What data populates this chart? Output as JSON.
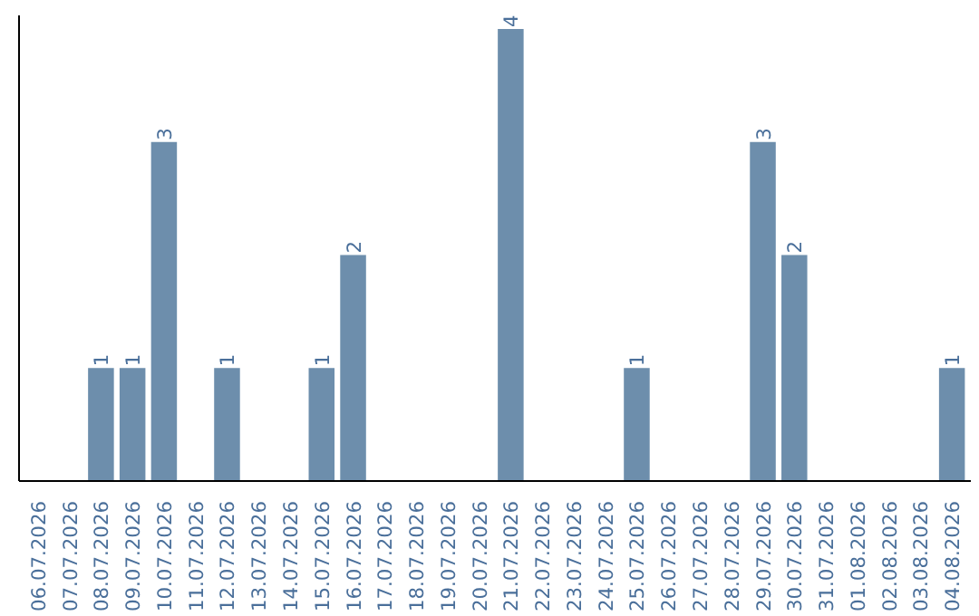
{
  "chart_data": {
    "type": "bar",
    "categories": [
      "06.07.2026",
      "07.07.2026",
      "08.07.2026",
      "09.07.2026",
      "10.07.2026",
      "11.07.2026",
      "12.07.2026",
      "13.07.2026",
      "14.07.2026",
      "15.07.2026",
      "16.07.2026",
      "17.07.2026",
      "18.07.2026",
      "19.07.2026",
      "20.07.2026",
      "21.07.2026",
      "22.07.2026",
      "23.07.2026",
      "24.07.2026",
      "25.07.2026",
      "26.07.2026",
      "27.07.2026",
      "28.07.2026",
      "29.07.2026",
      "30.07.2026",
      "31.07.2026",
      "01.08.2026",
      "02.08.2026",
      "03.08.2026",
      "04.08.2026"
    ],
    "values": [
      0,
      0,
      1,
      1,
      3,
      0,
      1,
      0,
      0,
      1,
      2,
      0,
      0,
      0,
      0,
      4,
      0,
      0,
      0,
      1,
      0,
      0,
      0,
      3,
      2,
      0,
      0,
      0,
      0,
      1
    ],
    "value_labels": [
      null,
      null,
      "1",
      "1",
      "3",
      null,
      "1",
      null,
      null,
      "1",
      "2",
      null,
      null,
      null,
      null,
      "4",
      null,
      null,
      null,
      "1",
      null,
      null,
      null,
      "3",
      "2",
      null,
      null,
      null,
      null,
      "1"
    ],
    "color": "#6d8eac",
    "grid": false
  }
}
